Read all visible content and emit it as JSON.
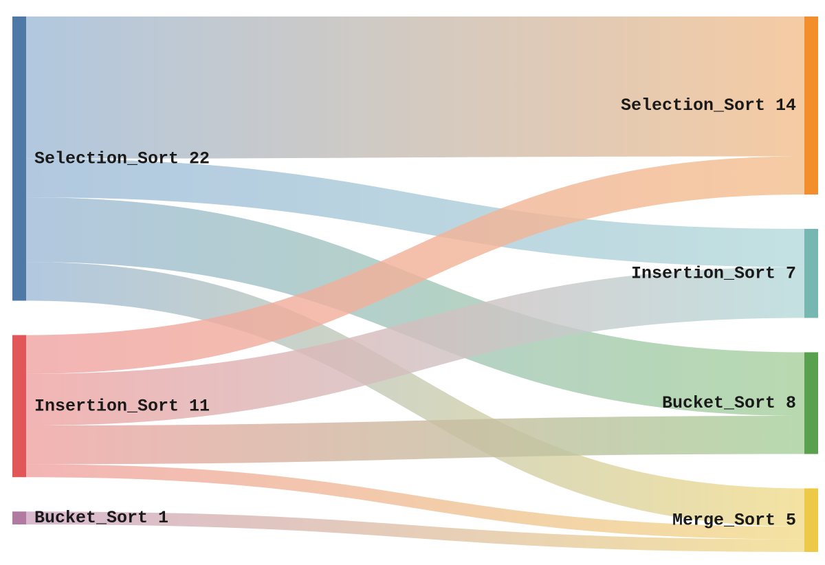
{
  "chart_data": {
    "type": "sankey",
    "title": "",
    "sources": [
      {
        "id": "src_selection",
        "name": "Selection_Sort",
        "value": 22,
        "color": "#4e79a7",
        "flow_color": "#a0bcd8"
      },
      {
        "id": "src_insertion",
        "name": "Insertion_Sort",
        "value": 11,
        "color": "#e15759",
        "flow_color": "#f0a4a4"
      },
      {
        "id": "src_bucket",
        "name": "Bucket_Sort",
        "value": 1,
        "color": "#b07aa1",
        "flow_color": "#cfa9c4"
      }
    ],
    "targets": [
      {
        "id": "tgt_selection",
        "name": "Selection_Sort",
        "value": 14,
        "color": "#f28e2b",
        "flow_color": "#f3c08f"
      },
      {
        "id": "tgt_insertion",
        "name": "Insertion_Sort",
        "value": 7,
        "color": "#76b7b2",
        "flow_color": "#b6dadb"
      },
      {
        "id": "tgt_bucket",
        "name": "Bucket_Sort",
        "value": 8,
        "color": "#59a14f",
        "flow_color": "#a8d19e"
      },
      {
        "id": "tgt_merge",
        "name": "Merge_Sort",
        "value": 5,
        "color": "#edc948",
        "flow_color": "#f1dc8d"
      }
    ],
    "links": [
      {
        "source": "src_selection",
        "target": "tgt_selection",
        "value": 11
      },
      {
        "source": "src_selection",
        "target": "tgt_insertion",
        "value": 3
      },
      {
        "source": "src_selection",
        "target": "tgt_bucket",
        "value": 5
      },
      {
        "source": "src_selection",
        "target": "tgt_merge",
        "value": 3
      },
      {
        "source": "src_insertion",
        "target": "tgt_selection",
        "value": 3
      },
      {
        "source": "src_insertion",
        "target": "tgt_insertion",
        "value": 4
      },
      {
        "source": "src_insertion",
        "target": "tgt_bucket",
        "value": 3
      },
      {
        "source": "src_insertion",
        "target": "tgt_merge",
        "value": 1
      },
      {
        "source": "src_bucket",
        "target": "tgt_merge",
        "value": 1
      }
    ]
  }
}
